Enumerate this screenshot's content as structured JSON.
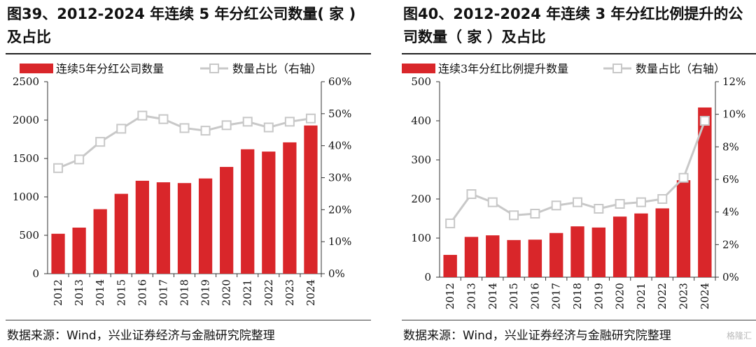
{
  "charts": [
    {
      "title_line1": "图39、2012-2024 年连续 5 年分红公司数量( 家 )",
      "title_line2": "及占比",
      "source": "数据来源：Wind，兴业证券经济与金融研究院整理",
      "bar_color": "#d9262a",
      "line_color": "#c8c8c8",
      "y_left_ticks": [
        "2500",
        "2000",
        "1500",
        "1000",
        "500",
        "0"
      ],
      "y_right_ticks": [
        "60%",
        "50%",
        "40%",
        "30%",
        "20%",
        "10%",
        "0%"
      ],
      "chart_data": {
        "type": "bar",
        "categories": [
          "2012",
          "2013",
          "2014",
          "2015",
          "2016",
          "2017",
          "2018",
          "2019",
          "2020",
          "2021",
          "2022",
          "2023",
          "2024"
        ],
        "series": [
          {
            "name": "连续5年分红公司数量",
            "kind": "bar",
            "axis": "left",
            "values": [
              520,
              600,
              840,
              1040,
              1210,
              1190,
              1180,
              1240,
              1390,
              1620,
              1590,
              1710,
              1930
            ]
          },
          {
            "name": "数量占比（右轴）",
            "kind": "line",
            "axis": "right",
            "values": [
              33,
              35.7,
              41.2,
              45.3,
              49.4,
              48.3,
              45.5,
              44.7,
              46.4,
              47.5,
              45.7,
              47.5,
              48.5
            ]
          }
        ],
        "ylim_left": [
          0,
          2500
        ],
        "ylim_right": [
          0,
          60
        ]
      }
    },
    {
      "title_line1": "图40、2012-2024 年连续 3 年分红比例提升的公",
      "title_line2": "司数量（ 家 ）及占比",
      "source": "数据来源：Wind，兴业证券经济与金融研究院整理",
      "bar_color": "#d9262a",
      "line_color": "#c8c8c8",
      "y_left_ticks": [
        "500",
        "400",
        "300",
        "200",
        "100",
        "0"
      ],
      "y_right_ticks": [
        "12%",
        "10%",
        "8%",
        "6%",
        "4%",
        "2%",
        "0%"
      ],
      "chart_data": {
        "type": "bar",
        "categories": [
          "2012",
          "2013",
          "2014",
          "2015",
          "2016",
          "2017",
          "2018",
          "2019",
          "2020",
          "2021",
          "2022",
          "2023",
          "2024"
        ],
        "series": [
          {
            "name": "连续3年分红比例提升数量",
            "kind": "bar",
            "axis": "left",
            "values": [
              57,
              103,
              107,
              95,
              96,
              113,
              130,
              127,
              155,
              163,
              176,
              248,
              434
            ]
          },
          {
            "name": "数量占比（右轴）",
            "kind": "line",
            "axis": "right",
            "values": [
              3.3,
              5.1,
              4.6,
              3.8,
              3.9,
              4.4,
              4.6,
              4.2,
              4.5,
              4.6,
              4.8,
              6.1,
              9.6
            ]
          }
        ],
        "ylim_left": [
          0,
          500
        ],
        "ylim_right": [
          0,
          12
        ]
      }
    }
  ],
  "watermark": "格隆汇"
}
